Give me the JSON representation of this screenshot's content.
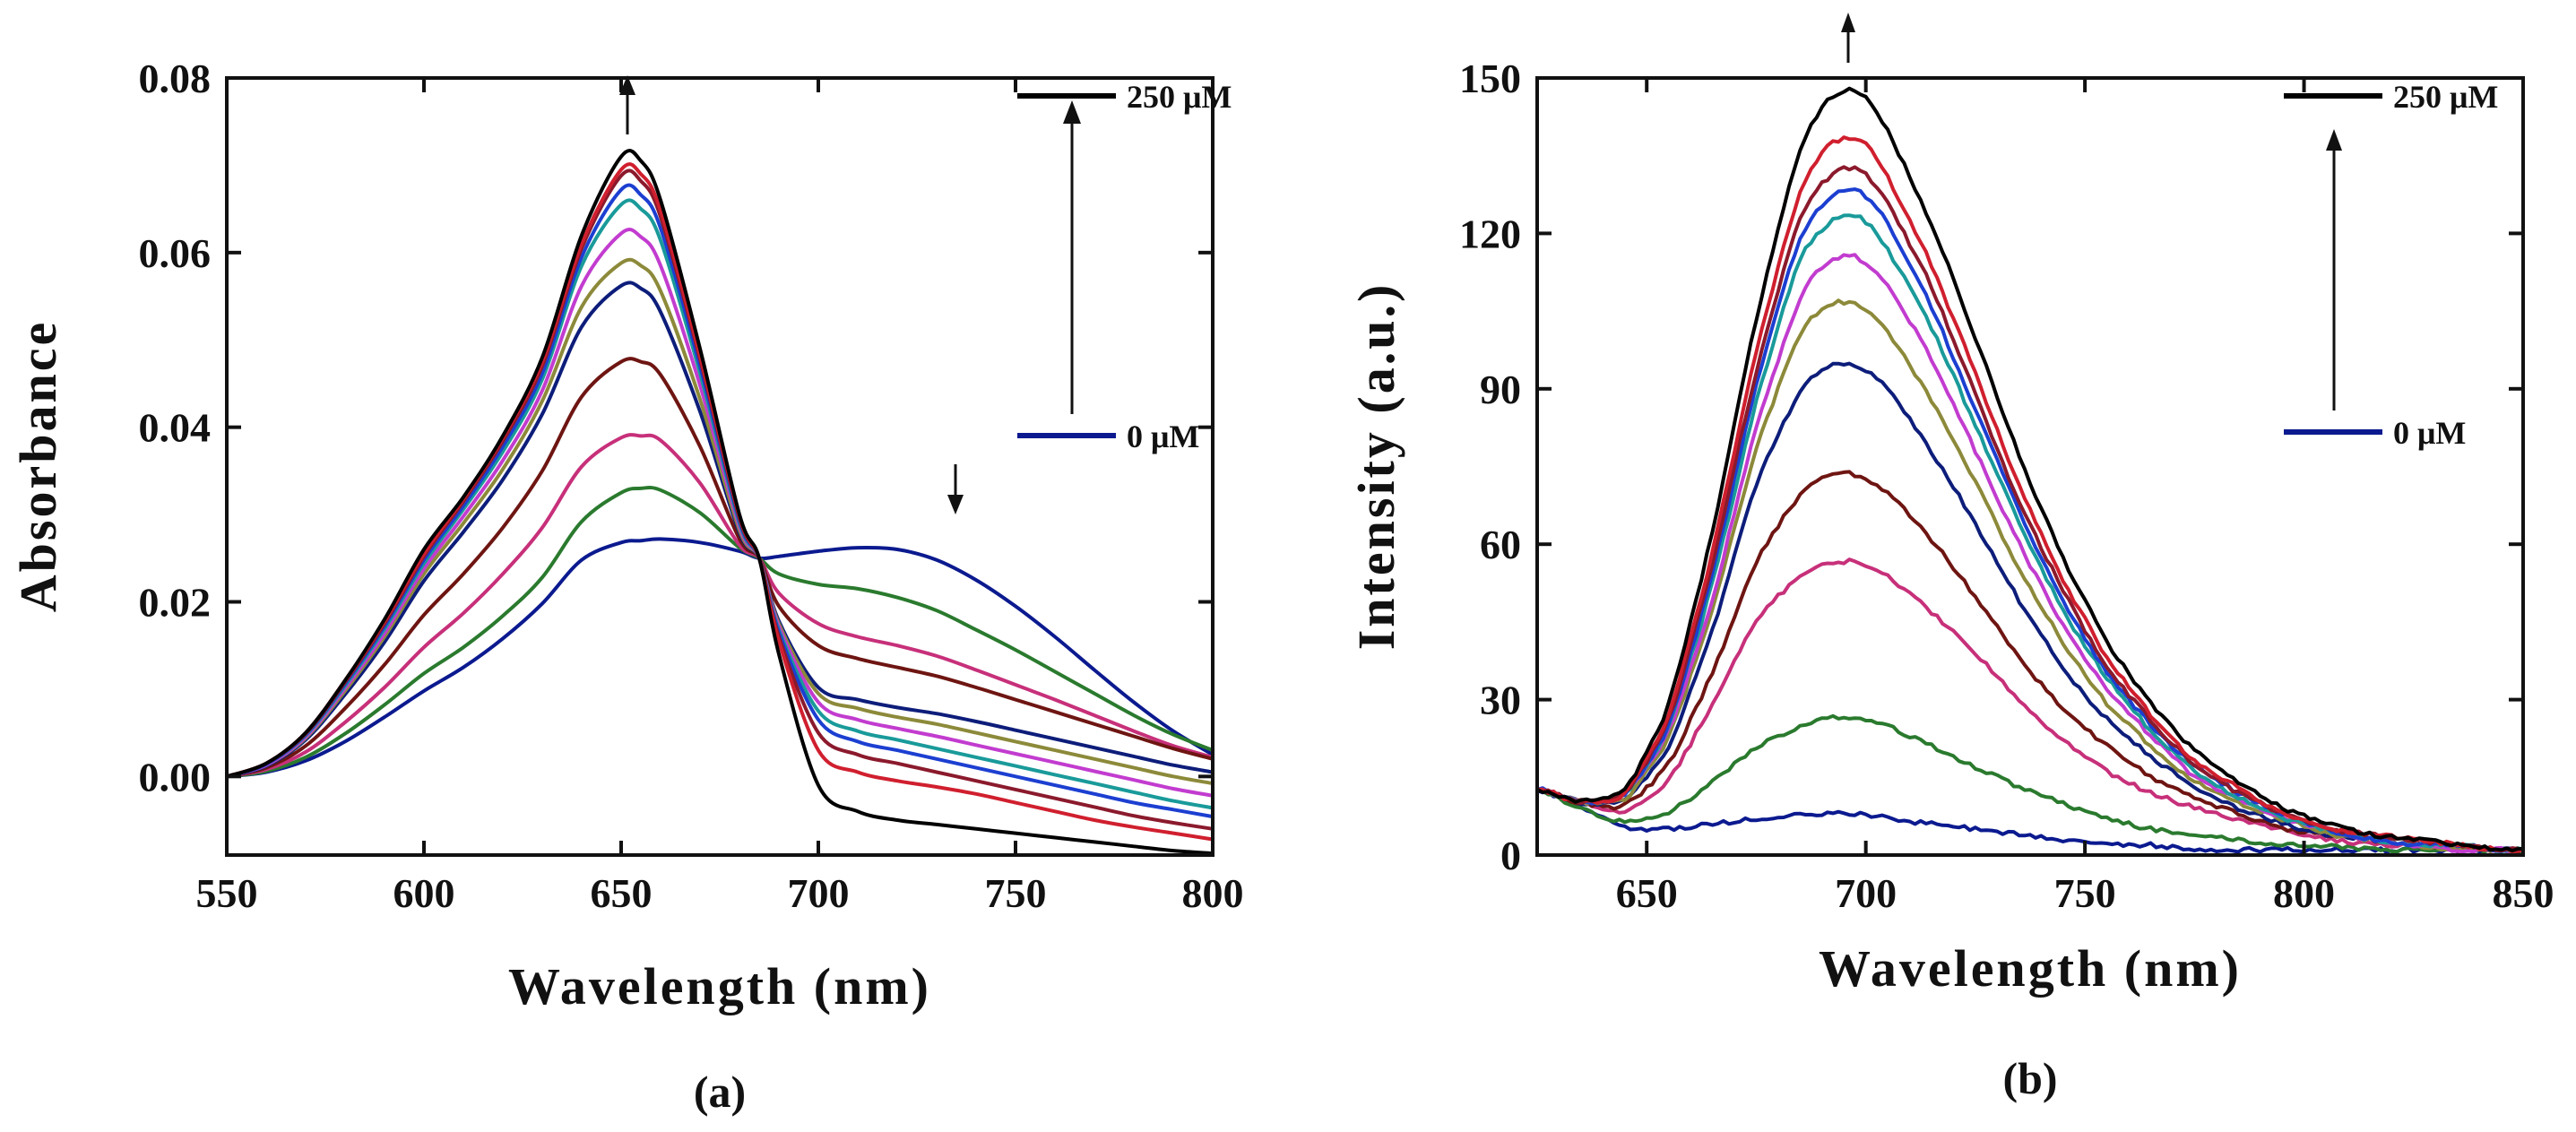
{
  "colors": {
    "series": [
      "#000000",
      "#d01f2e",
      "#8b1a2c",
      "#1c3fd1",
      "#1a9a9a",
      "#c23ccf",
      "#8c8a3a",
      "#0d1d7a",
      "#6e1512",
      "#c7307a",
      "#2a7a2e",
      "#0b1a8f"
    ]
  },
  "chart_data": [
    {
      "type": "line",
      "panel_label": "(a)",
      "xlabel": "Wavelength (nm)",
      "ylabel": "Absorbance",
      "xlim": [
        550,
        800
      ],
      "ylim": [
        -0.009,
        0.08
      ],
      "xticks": [
        550,
        600,
        650,
        700,
        750,
        800
      ],
      "xtick_labels": [
        "550",
        "600",
        "650",
        "700",
        "750",
        "800"
      ],
      "yticks": [
        0.0,
        0.02,
        0.04,
        0.06,
        0.08
      ],
      "ytick_labels": [
        "0.00",
        "0.02",
        "0.04",
        "0.06",
        "0.08"
      ],
      "legend": {
        "top_label": "250 μM",
        "bottom_label": "0 μM",
        "placement": "top-right"
      },
      "annotations": [
        {
          "type": "arrow-up",
          "x": 651,
          "y_from": 0.073,
          "y_to": 0.079
        },
        {
          "type": "arrow-down",
          "x": 735,
          "y_from": 0.035,
          "y_to": 0.029
        }
      ],
      "x": [
        550,
        560,
        570,
        580,
        590,
        600,
        610,
        620,
        630,
        640,
        650,
        655,
        660,
        670,
        680,
        685,
        690,
        700,
        710,
        720,
        730,
        740,
        750,
        760,
        770,
        780,
        790,
        800
      ],
      "series": [
        {
          "values": [
            0.0,
            0.0015,
            0.005,
            0.011,
            0.018,
            0.026,
            0.032,
            0.039,
            0.048,
            0.062,
            0.071,
            0.0705,
            0.066,
            0.049,
            0.03,
            0.025,
            0.014,
            -0.001,
            -0.004,
            -0.005,
            -0.0055,
            -0.006,
            -0.0065,
            -0.007,
            -0.0075,
            -0.008,
            -0.0085,
            -0.0088
          ]
        },
        {
          "values": [
            0.0,
            0.0015,
            0.005,
            0.011,
            0.0178,
            0.0255,
            0.0318,
            0.0388,
            0.0475,
            0.061,
            0.0695,
            0.069,
            0.0648,
            0.0482,
            0.0298,
            0.025,
            0.0155,
            0.003,
            0.0005,
            -0.0005,
            -0.0012,
            -0.002,
            -0.003,
            -0.004,
            -0.005,
            -0.0058,
            -0.0065,
            -0.0072
          ]
        },
        {
          "values": [
            0.0,
            0.0015,
            0.0049,
            0.0108,
            0.0175,
            0.0252,
            0.0315,
            0.0384,
            0.047,
            0.0605,
            0.0688,
            0.0682,
            0.0641,
            0.0478,
            0.0296,
            0.025,
            0.016,
            0.005,
            0.0025,
            0.0015,
            0.0005,
            -0.0005,
            -0.0015,
            -0.0025,
            -0.0035,
            -0.0045,
            -0.0053,
            -0.006
          ]
        },
        {
          "values": [
            0.0,
            0.0014,
            0.0048,
            0.0106,
            0.0172,
            0.0248,
            0.031,
            0.0378,
            0.0462,
            0.0595,
            0.0672,
            0.0666,
            0.0628,
            0.047,
            0.0293,
            0.025,
            0.0165,
            0.0065,
            0.004,
            0.003,
            0.002,
            0.001,
            0.0,
            -0.001,
            -0.002,
            -0.003,
            -0.0038,
            -0.0046
          ]
        },
        {
          "values": [
            0.0,
            0.0014,
            0.0047,
            0.0104,
            0.0169,
            0.0244,
            0.0306,
            0.0372,
            0.0455,
            0.0585,
            0.0655,
            0.065,
            0.0614,
            0.0462,
            0.029,
            0.025,
            0.0168,
            0.0075,
            0.0052,
            0.0042,
            0.0032,
            0.0022,
            0.0012,
            0.0002,
            -0.0008,
            -0.0018,
            -0.0028,
            -0.0036
          ]
        },
        {
          "values": [
            0.0,
            0.0013,
            0.0045,
            0.0101,
            0.0164,
            0.0238,
            0.0298,
            0.0362,
            0.0442,
            0.0562,
            0.0622,
            0.0618,
            0.0585,
            0.0448,
            0.0286,
            0.025,
            0.0172,
            0.0085,
            0.0065,
            0.0055,
            0.0046,
            0.0036,
            0.0026,
            0.0016,
            0.0006,
            -0.0004,
            -0.0014,
            -0.0022
          ]
        },
        {
          "values": [
            0.0,
            0.0013,
            0.0044,
            0.0098,
            0.016,
            0.0232,
            0.029,
            0.0352,
            0.043,
            0.0538,
            0.0588,
            0.0585,
            0.0556,
            0.0432,
            0.0282,
            0.025,
            0.0175,
            0.0095,
            0.0078,
            0.0068,
            0.006,
            0.005,
            0.004,
            0.003,
            0.002,
            0.001,
            0.0,
            -0.0008
          ]
        },
        {
          "values": [
            0.0,
            0.0012,
            0.0042,
            0.0094,
            0.0154,
            0.0224,
            0.028,
            0.034,
            0.0415,
            0.0515,
            0.0562,
            0.0559,
            0.0532,
            0.0418,
            0.0279,
            0.025,
            0.0178,
            0.0102,
            0.0088,
            0.0079,
            0.0072,
            0.0063,
            0.0053,
            0.0043,
            0.0033,
            0.0023,
            0.0013,
            0.0005
          ]
        },
        {
          "values": [
            0.0,
            0.001,
            0.0035,
            0.0078,
            0.0128,
            0.0185,
            0.0232,
            0.0285,
            0.035,
            0.0435,
            0.0475,
            0.0475,
            0.046,
            0.0378,
            0.0272,
            0.025,
            0.0195,
            0.015,
            0.0135,
            0.0125,
            0.0115,
            0.0102,
            0.0088,
            0.0074,
            0.006,
            0.0046,
            0.0032,
            0.002
          ]
        },
        {
          "values": [
            0.0,
            0.0008,
            0.0028,
            0.0062,
            0.0102,
            0.0148,
            0.0187,
            0.0232,
            0.0285,
            0.0355,
            0.0388,
            0.039,
            0.0385,
            0.0336,
            0.0265,
            0.025,
            0.021,
            0.0175,
            0.016,
            0.015,
            0.0138,
            0.0122,
            0.0105,
            0.0088,
            0.007,
            0.0052,
            0.0035,
            0.0022
          ]
        },
        {
          "values": [
            0.0,
            0.0006,
            0.0022,
            0.0049,
            0.0082,
            0.0118,
            0.0148,
            0.0184,
            0.0228,
            0.0292,
            0.0325,
            0.033,
            0.0328,
            0.0302,
            0.0262,
            0.025,
            0.0232,
            0.022,
            0.0215,
            0.0205,
            0.019,
            0.0168,
            0.0145,
            0.012,
            0.0095,
            0.007,
            0.0048,
            0.003
          ]
        },
        {
          "values": [
            0.0,
            0.0005,
            0.0018,
            0.004,
            0.0068,
            0.0098,
            0.0125,
            0.0158,
            0.0198,
            0.0248,
            0.0268,
            0.027,
            0.0272,
            0.0268,
            0.0258,
            0.025,
            0.0252,
            0.0258,
            0.0262,
            0.026,
            0.0248,
            0.0225,
            0.0195,
            0.016,
            0.0122,
            0.0085,
            0.0052,
            0.0025
          ]
        }
      ]
    },
    {
      "type": "line",
      "panel_label": "(b)",
      "xlabel": "Wavelength (nm)",
      "ylabel": "Intensity (a.u.)",
      "xlim": [
        625,
        850
      ],
      "ylim": [
        0,
        150
      ],
      "xticks": [
        650,
        700,
        750,
        800,
        850
      ],
      "xtick_labels": [
        "650",
        "700",
        "750",
        "800",
        "850"
      ],
      "yticks": [
        0,
        30,
        60,
        90,
        120,
        150
      ],
      "ytick_labels": [
        "0",
        "30",
        "60",
        "90",
        "120",
        "150"
      ],
      "legend": {
        "top_label": "250 μM",
        "bottom_label": "0 μM",
        "placement": "top-right"
      },
      "annotations": [
        {
          "type": "arrow-up",
          "x": 696,
          "y_from": 152,
          "y_to": 160
        }
      ],
      "x": [
        625,
        635,
        645,
        655,
        665,
        675,
        685,
        690,
        695,
        700,
        705,
        715,
        725,
        735,
        745,
        755,
        765,
        775,
        785,
        795,
        805,
        815,
        825,
        835,
        845,
        850
      ],
      "series": [
        {
          "values": [
            13,
            10,
            12,
            28,
            62,
            104,
            137,
            145,
            148,
            147,
            140,
            122,
            100,
            77,
            57,
            41,
            29,
            20,
            14,
            9,
            6,
            4,
            3,
            2,
            1,
            1
          ]
        },
        {
          "values": [
            13,
            10,
            11,
            26,
            58,
            98,
            129,
            136,
            139,
            138,
            131,
            114,
            93,
            71,
            53,
            38,
            27,
            18,
            13,
            8,
            5,
            4,
            3,
            2,
            1,
            1
          ]
        },
        {
          "values": [
            13,
            10,
            11,
            25,
            56,
            94,
            124,
            130,
            133,
            132,
            126,
            110,
            89,
            68,
            51,
            36,
            26,
            17,
            12,
            8,
            5,
            4,
            3,
            2,
            1,
            1
          ]
        },
        {
          "values": [
            13,
            10,
            11,
            24,
            54,
            91,
            120,
            126,
            129,
            128,
            122,
            106,
            86,
            66,
            49,
            35,
            25,
            17,
            12,
            8,
            5,
            3,
            2,
            2,
            1,
            1
          ]
        },
        {
          "values": [
            13,
            10,
            11,
            24,
            52,
            88,
            116,
            121,
            124,
            123,
            117,
            102,
            83,
            64,
            47,
            34,
            24,
            16,
            11,
            7,
            5,
            3,
            2,
            2,
            1,
            1
          ]
        },
        {
          "values": [
            13,
            10,
            11,
            23,
            49,
            83,
            108,
            114,
            116,
            115,
            110,
            96,
            78,
            60,
            44,
            32,
            23,
            15,
            11,
            7,
            5,
            3,
            2,
            1,
            1,
            1
          ]
        },
        {
          "values": [
            13,
            10,
            10,
            22,
            47,
            79,
            101,
            106,
            107,
            106,
            101,
            88,
            72,
            55,
            41,
            29,
            21,
            14,
            10,
            7,
            4,
            3,
            2,
            1,
            1,
            1
          ]
        },
        {
          "values": [
            13,
            10,
            10,
            20,
            43,
            72,
            90,
            94,
            95,
            94,
            90,
            78,
            64,
            49,
            36,
            26,
            19,
            13,
            9,
            6,
            4,
            3,
            2,
            1,
            1,
            1
          ]
        },
        {
          "values": [
            13,
            10,
            9,
            17,
            35,
            57,
            70,
            73,
            74,
            73,
            70,
            61,
            50,
            38,
            28,
            21,
            15,
            11,
            8,
            5,
            4,
            3,
            2,
            1,
            1,
            1
          ]
        },
        {
          "values": [
            13,
            10,
            8,
            14,
            29,
            46,
            54,
            56,
            57,
            56,
            54,
            47,
            39,
            30,
            22,
            16,
            12,
            9,
            7,
            5,
            3,
            2,
            2,
            1,
            1,
            1
          ]
        },
        {
          "values": [
            13,
            9,
            6,
            8,
            14,
            21,
            25,
            26,
            27,
            26,
            25,
            21,
            17,
            13,
            10,
            7,
            5,
            4,
            3,
            2,
            2,
            1,
            1,
            1,
            1,
            1
          ]
        },
        {
          "values": [
            13,
            9,
            5,
            5,
            6,
            7,
            8,
            8,
            8,
            8,
            7,
            6,
            5,
            4,
            3,
            2,
            2,
            1,
            1,
            1,
            1,
            1,
            1,
            1,
            1,
            1
          ]
        }
      ]
    }
  ]
}
